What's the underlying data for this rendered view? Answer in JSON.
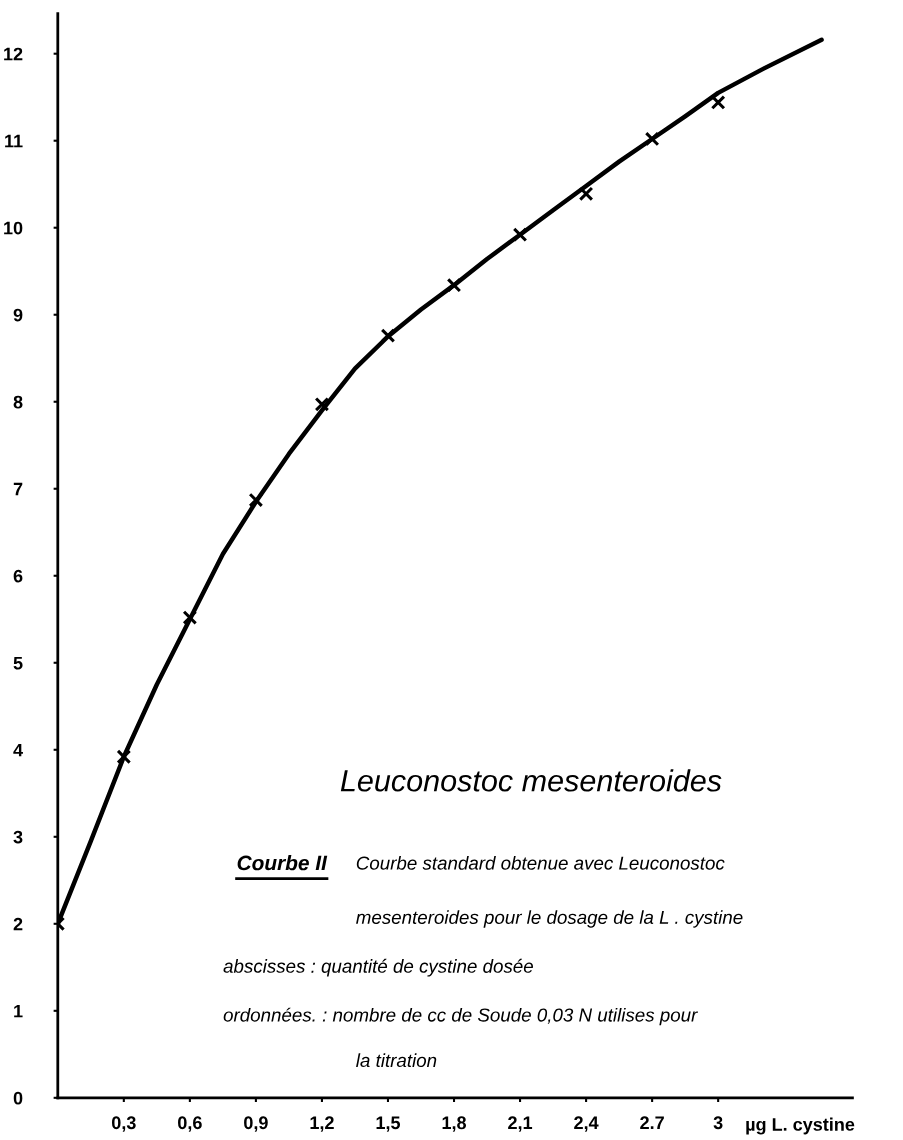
{
  "chart_data": {
    "type": "scatter",
    "title": "Leuconostoc mesenteroides",
    "xlabel": "µg L. cystine",
    "x": [
      0,
      0.3,
      0.6,
      0.9,
      1.2,
      1.5,
      1.8,
      2.1,
      2.4,
      2.7,
      3.0
    ],
    "series": [
      {
        "color": "#000000",
        "marker": "cross",
        "values": [
          2.0,
          3.92,
          5.52,
          6.87,
          7.97,
          8.76,
          9.34,
          9.92,
          10.39,
          11.02,
          11.44
        ]
      },
      {
        "type": "line",
        "color": "#000000",
        "marker": "none",
        "line_style": "solid",
        "x": [
          0,
          0.15,
          0.3,
          0.45,
          0.6,
          0.75,
          0.9,
          1.05,
          1.2,
          1.35,
          1.5,
          1.65,
          1.8,
          1.95,
          2.1,
          2.25,
          2.4,
          2.55,
          2.7,
          2.85,
          3.0,
          3.2,
          3.47
        ],
        "values": [
          2.0,
          2.95,
          3.92,
          4.75,
          5.5,
          6.25,
          6.85,
          7.4,
          7.9,
          8.38,
          8.75,
          9.06,
          9.34,
          9.64,
          9.92,
          10.2,
          10.48,
          10.76,
          11.02,
          11.28,
          11.55,
          11.82,
          12.16
        ]
      }
    ],
    "xlim": [
      0,
      3.61
    ],
    "ylim": [
      0,
      12.46
    ],
    "xticks": [
      {
        "value": 0.3,
        "label": "0,3"
      },
      {
        "value": 0.6,
        "label": "0,6"
      },
      {
        "value": 0.9,
        "label": "0,9"
      },
      {
        "value": 1.2,
        "label": "1,2"
      },
      {
        "value": 1.5,
        "label": "1,5"
      },
      {
        "value": 1.8,
        "label": "1,8"
      },
      {
        "value": 2.1,
        "label": "2,1"
      },
      {
        "value": 2.4,
        "label": "2,4"
      },
      {
        "value": 2.7,
        "label": "2.7"
      },
      {
        "value": 3.0,
        "label": "3"
      }
    ],
    "yticks": [
      0,
      1,
      2,
      3,
      4,
      5,
      6,
      7,
      8,
      9,
      10,
      11,
      12
    ],
    "grid": false,
    "legend": false,
    "annotations": [
      "Courbe II",
      "Courbe standard obtenue avec Leuconostoc",
      "mesenteroides pour le dosage de la L . cystine",
      "abscisses : quantité de cystine dosée",
      "ordonnées. : nombre de cc de Soude 0,03 N utilises pour",
      "la titration"
    ]
  }
}
